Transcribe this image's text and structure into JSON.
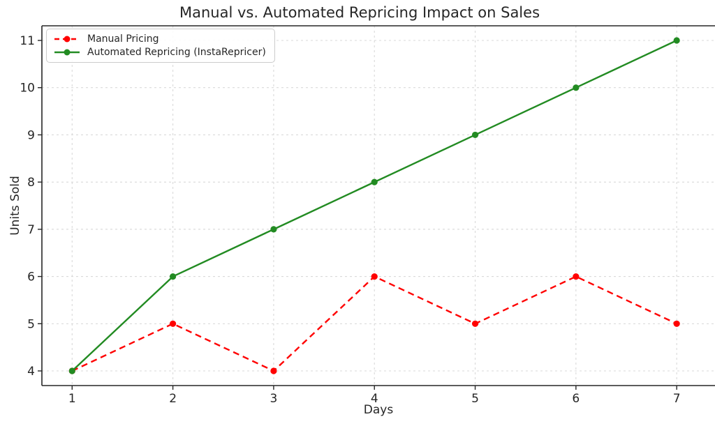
{
  "chart_data": {
    "type": "line",
    "title": "Manual vs. Automated Repricing Impact on Sales",
    "xlabel": "Days",
    "ylabel": "Units Sold",
    "x": [
      1,
      2,
      3,
      4,
      5,
      6,
      7
    ],
    "xticks": [
      1,
      2,
      3,
      4,
      5,
      6,
      7
    ],
    "yticks": [
      4,
      5,
      6,
      7,
      8,
      9,
      10,
      11
    ],
    "xlim": [
      0.7,
      7.38
    ],
    "ylim": [
      3.69,
      11.31
    ],
    "grid": true,
    "grid_style": "dashed",
    "legend_position": "upper left",
    "series": [
      {
        "name": "Manual Pricing",
        "values": [
          4,
          5,
          4,
          6,
          5,
          6,
          5
        ],
        "color": "#ff0000",
        "line_style": "dashed",
        "marker": "circle"
      },
      {
        "name": "Automated Repricing (InstaRepricer)",
        "values": [
          4,
          6,
          7,
          8,
          9,
          10,
          11
        ],
        "color": "#228b22",
        "line_style": "solid",
        "marker": "circle"
      }
    ],
    "colors": {
      "background": "#ffffff",
      "grid": "#d9d9d9",
      "axis": "#262626",
      "text": "#262626"
    }
  }
}
